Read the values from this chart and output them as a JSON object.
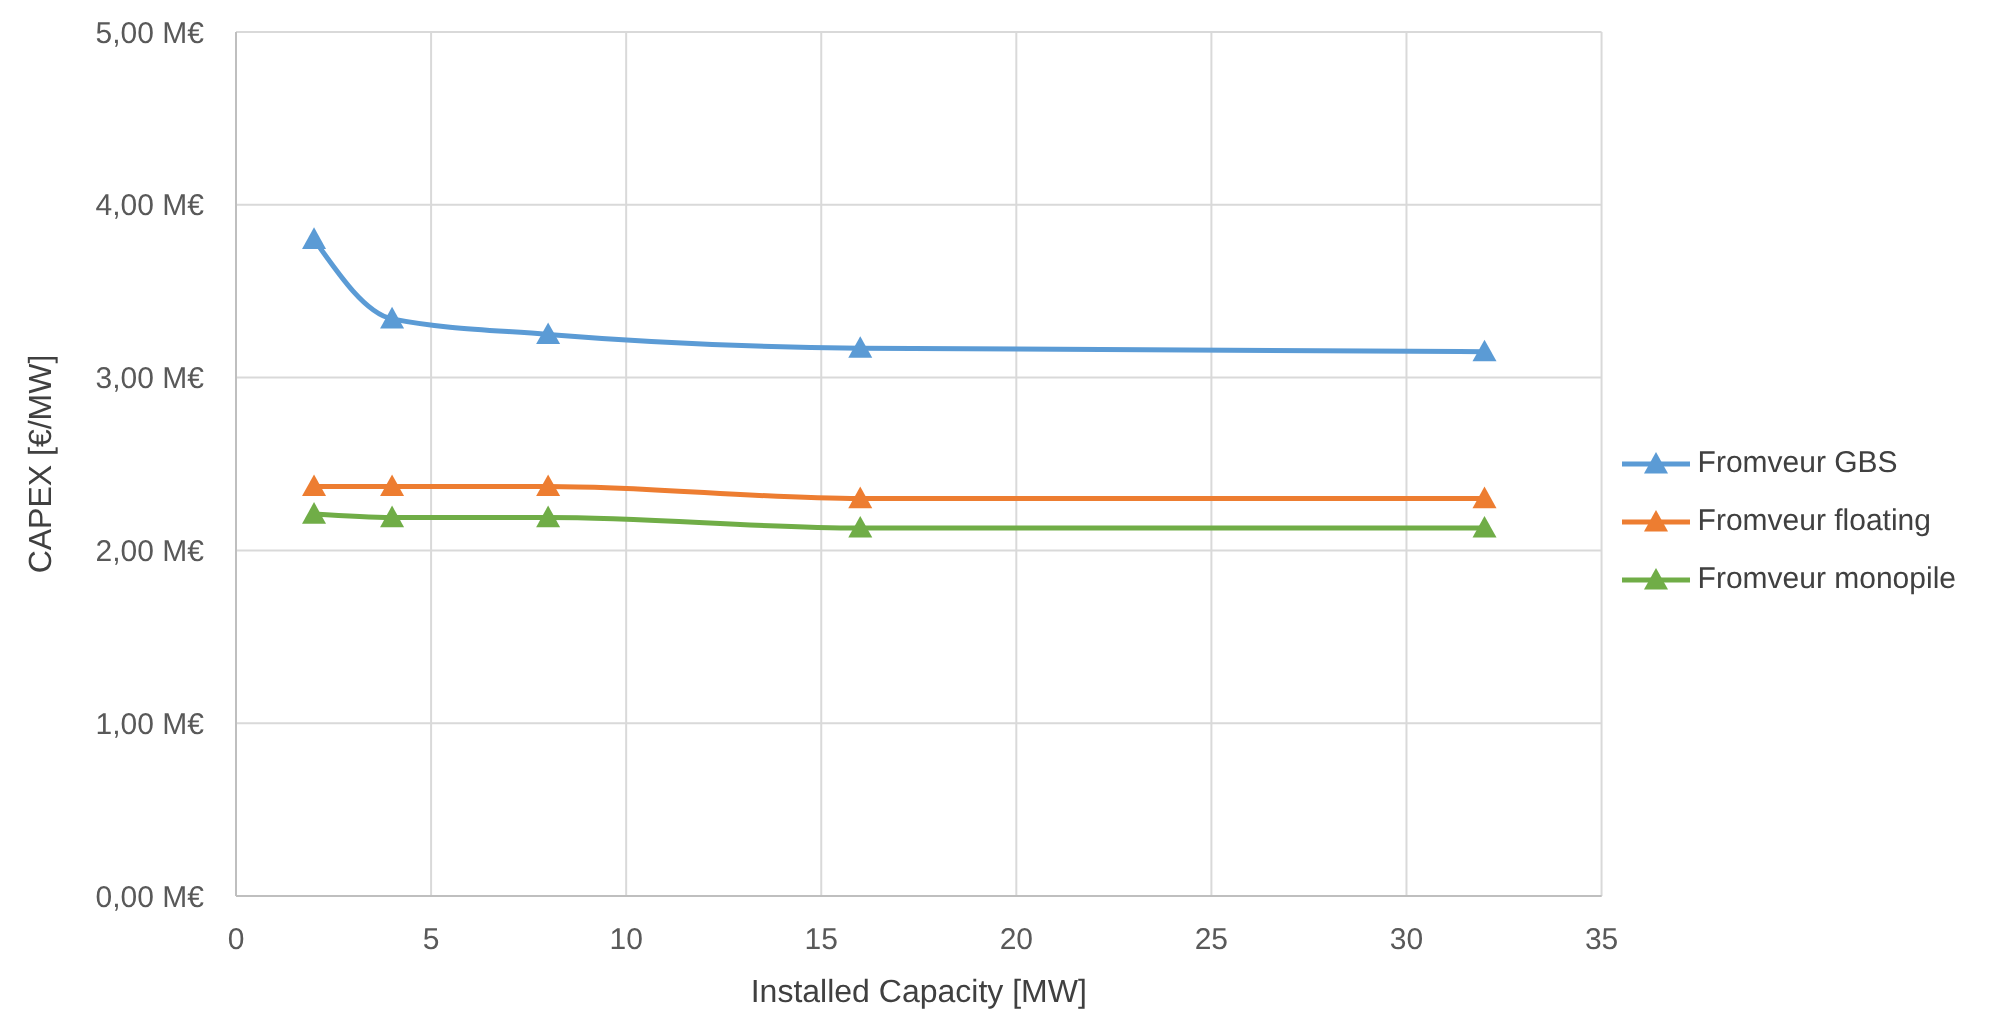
{
  "chart_data": {
    "type": "line",
    "xlabel": "Installed Capacity [MW]",
    "ylabel": "CAPEX [€/MW]",
    "x": [
      2,
      4,
      8,
      16,
      32
    ],
    "series": [
      {
        "name": "Fromveur GBS",
        "color": "#5b9bd5",
        "values": [
          3.8,
          3.34,
          3.25,
          3.17,
          3.15
        ]
      },
      {
        "name": "Fromveur floating",
        "color": "#ed7d31",
        "values": [
          2.37,
          2.37,
          2.37,
          2.3,
          2.3
        ]
      },
      {
        "name": "Fromveur monopile",
        "color": "#70ad47",
        "values": [
          2.21,
          2.19,
          2.19,
          2.13,
          2.13
        ]
      }
    ],
    "xlim": [
      0,
      35
    ],
    "xticks": [
      0,
      5,
      10,
      15,
      20,
      25,
      30,
      35
    ],
    "ylim": [
      0,
      5
    ],
    "yticks": [
      {
        "value": 0,
        "label": "0,00 M€"
      },
      {
        "value": 1,
        "label": "1,00 M€"
      },
      {
        "value": 2,
        "label": "2,00 M€"
      },
      {
        "value": 3,
        "label": "3,00 M€"
      },
      {
        "value": 4,
        "label": "4,00 M€"
      },
      {
        "value": 5,
        "label": "5,00 M€"
      }
    ],
    "grid": true,
    "legend": "right",
    "marker": "triangle",
    "line_style": "solid"
  }
}
